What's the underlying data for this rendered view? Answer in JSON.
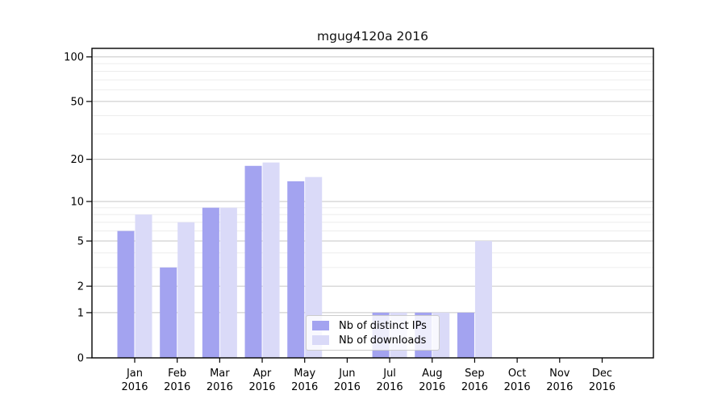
{
  "window": {
    "background": "#ffffff"
  },
  "chart_data": {
    "type": "bar",
    "title": "mgug4120a 2016",
    "categories": [
      "Jan",
      "Feb",
      "Mar",
      "Apr",
      "May",
      "Jun",
      "Jul",
      "Aug",
      "Sep",
      "Oct",
      "Nov",
      "Dec"
    ],
    "category_year": "2016",
    "series": [
      {
        "name": "Nb of distinct IPs",
        "color": "#a3a3f0",
        "values": [
          6,
          3,
          9,
          18,
          14,
          0,
          1,
          1,
          1,
          0,
          0,
          0
        ]
      },
      {
        "name": "Nb of downloads",
        "color": "#dadaf8",
        "values": [
          8,
          7,
          9,
          19,
          15,
          0,
          1,
          1,
          5,
          0,
          0,
          0
        ]
      }
    ],
    "y_axis": {
      "scale": "log10(1+x)",
      "tick_values": [
        0,
        1,
        2,
        5,
        10,
        20,
        50,
        100
      ],
      "tick_labels": [
        "0",
        "1",
        "2",
        "5",
        "10",
        "20",
        "50",
        "100"
      ],
      "range": [
        0,
        110
      ]
    },
    "x_axis": {
      "tick_label_line2": "2016"
    },
    "gridlines": {
      "values": [
        1,
        2,
        3,
        4,
        5,
        6,
        7,
        8,
        9,
        10,
        20,
        30,
        40,
        50,
        60,
        70,
        80,
        90,
        100
      ],
      "labeled_values": [
        1,
        2,
        5,
        10,
        20,
        50,
        100
      ]
    },
    "legend": {
      "position": "bottom-center"
    },
    "colors": {
      "labeled_gridline": "#c6c6c6",
      "minor_gridline": "#ededed",
      "frame": "#000000",
      "tick_text": "#000000",
      "legend_border": "#cccccc"
    }
  }
}
